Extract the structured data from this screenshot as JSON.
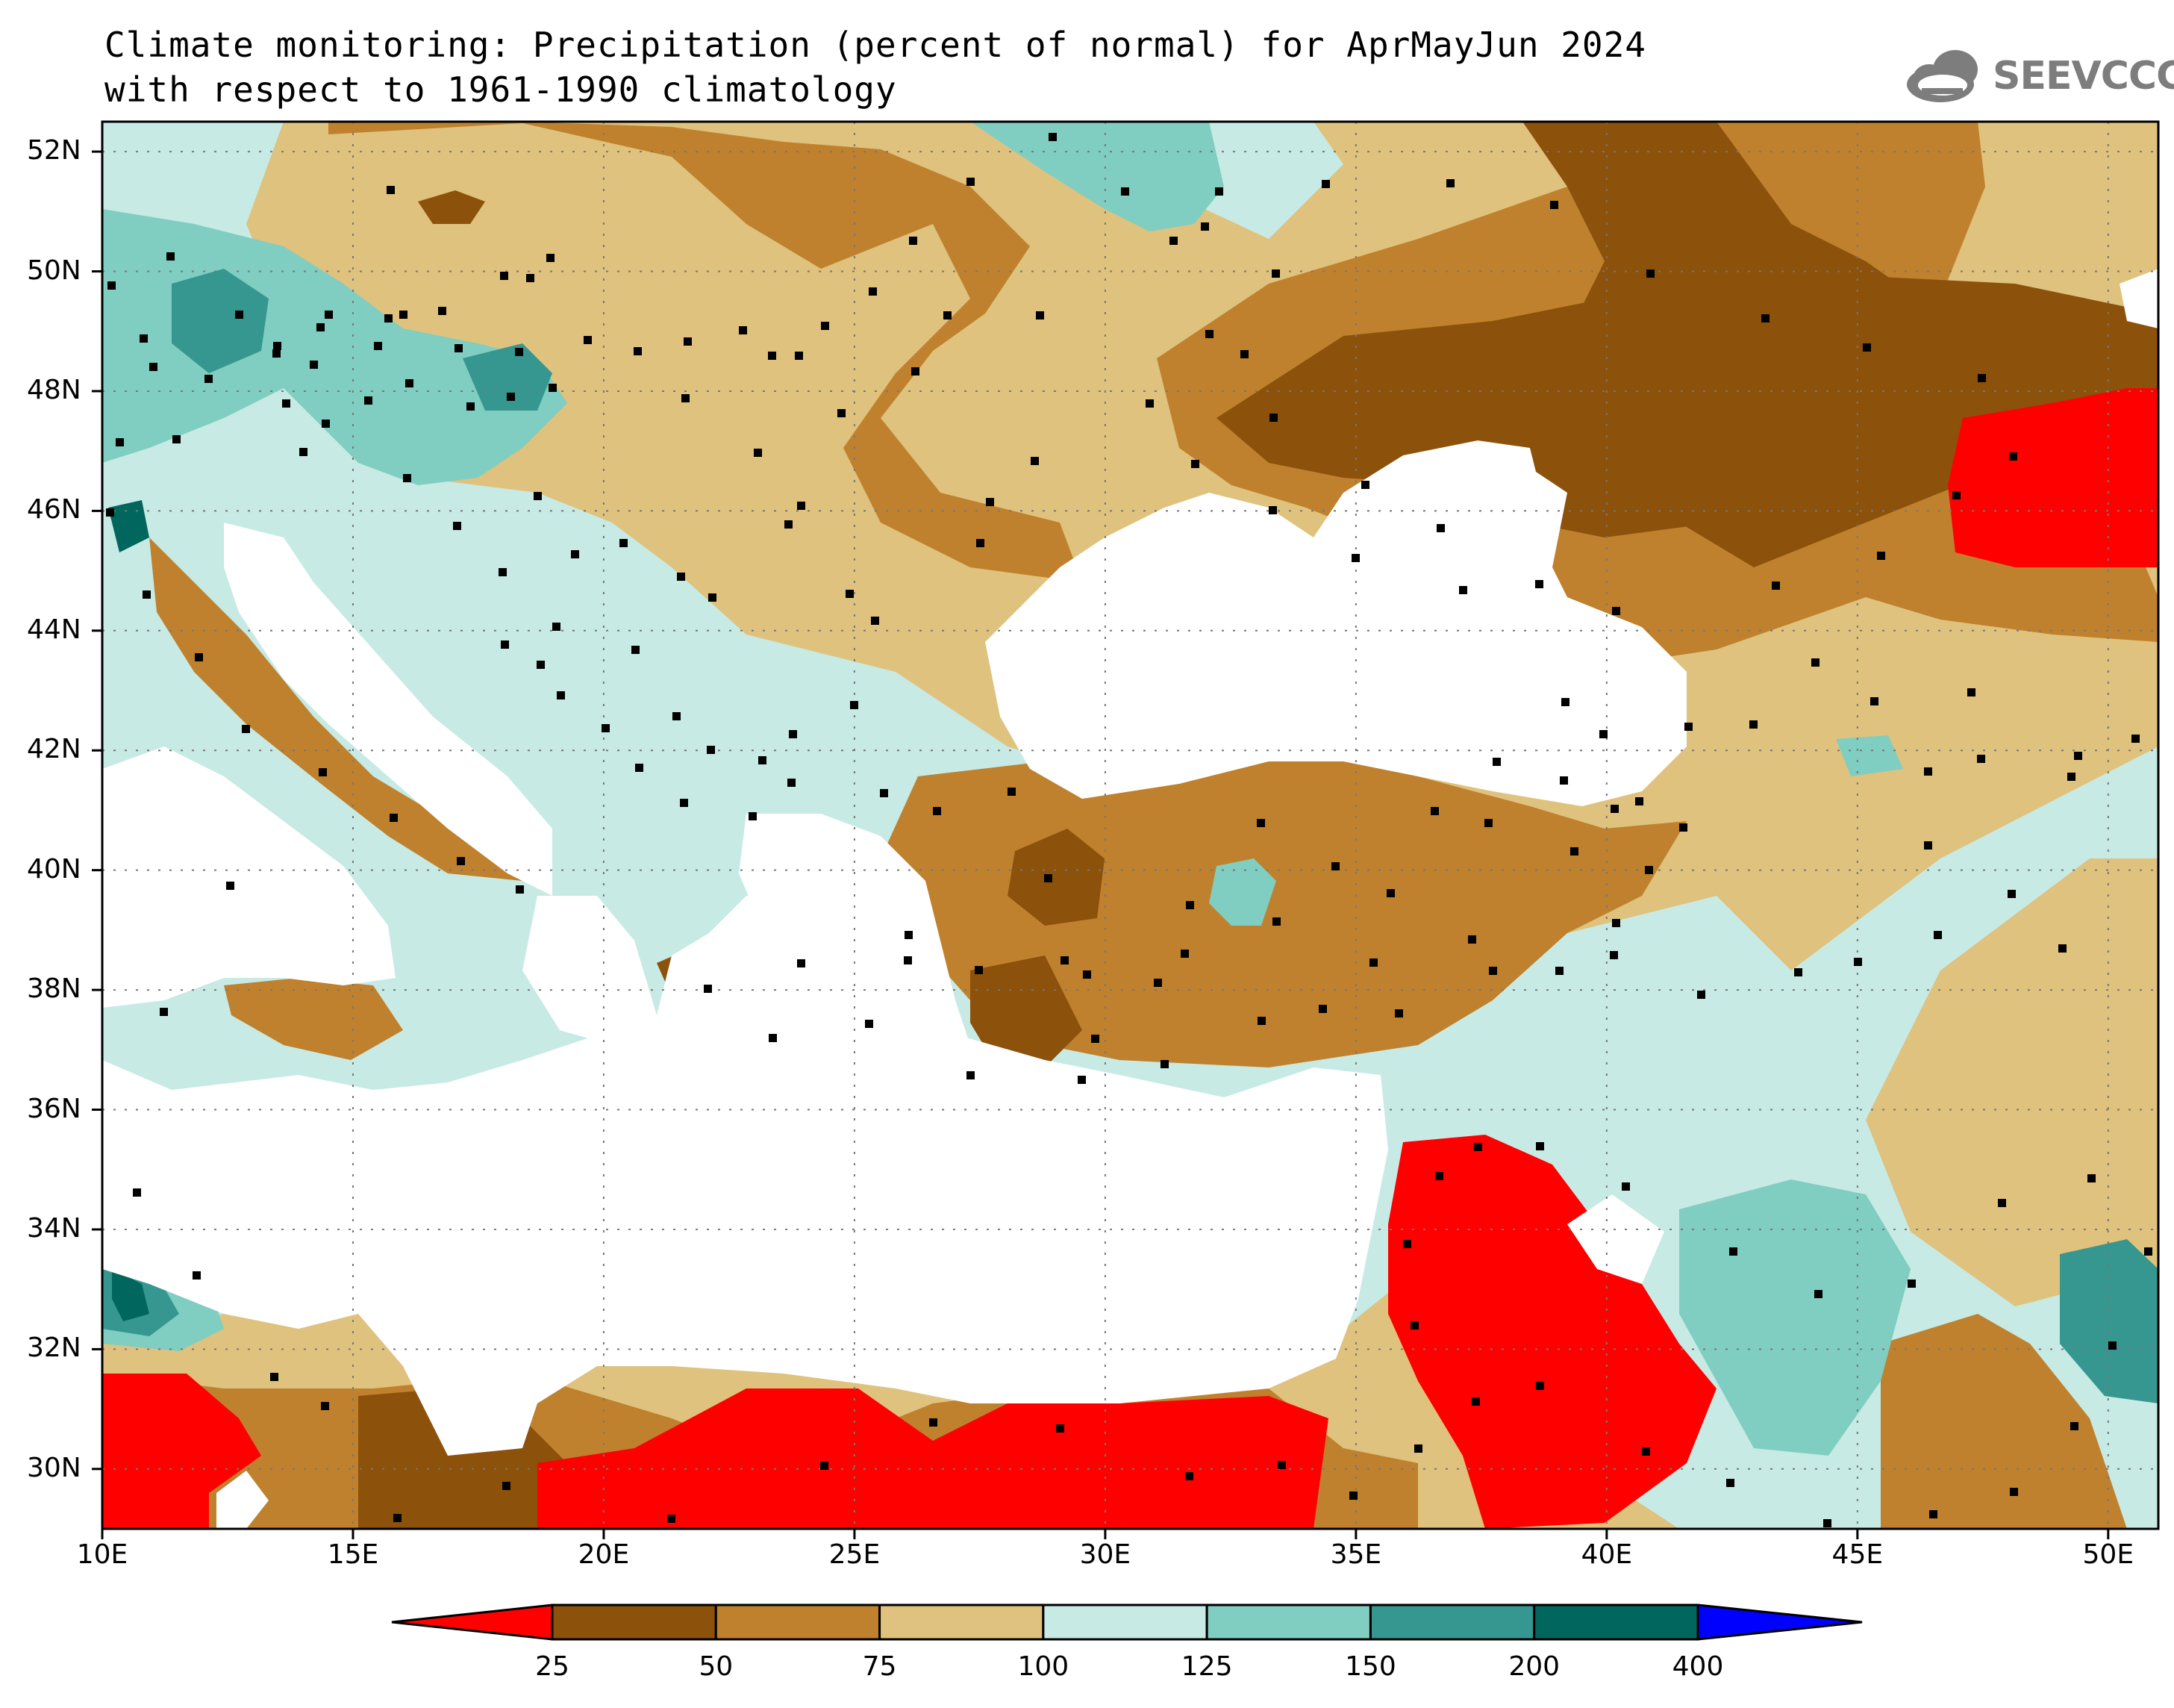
{
  "title": {
    "line1": "Climate monitoring: Precipitation (percent of normal) for AprMayJun 2024",
    "line2": "with respect to 1961-1990 climatology"
  },
  "logo": {
    "text": "SEEVCCC",
    "icon": "cloud-icon",
    "color": "#7d7d7d"
  },
  "map": {
    "lon_range": [
      10,
      51
    ],
    "lat_range": [
      29,
      52.5
    ],
    "lat_labels": [
      "52N",
      "50N",
      "48N",
      "46N",
      "44N",
      "42N",
      "40N",
      "38N",
      "36N",
      "34N",
      "32N",
      "30N"
    ],
    "lon_labels": [
      "10E",
      "15E",
      "20E",
      "25E",
      "30E",
      "35E",
      "40E",
      "45E",
      "50E"
    ],
    "gridlines": true
  },
  "legend": {
    "ticks": [
      "25",
      "50",
      "75",
      "100",
      "125",
      "150",
      "200",
      "400"
    ],
    "colors": [
      "#ff0000",
      "#8c510a",
      "#bf812d",
      "#dfc27d",
      "#c7eae5",
      "#80cdc1",
      "#35978f",
      "#01665e",
      "#0000ff"
    ],
    "low_arrow_color": "#ff0000",
    "high_arrow_color": "#0000ff"
  }
}
